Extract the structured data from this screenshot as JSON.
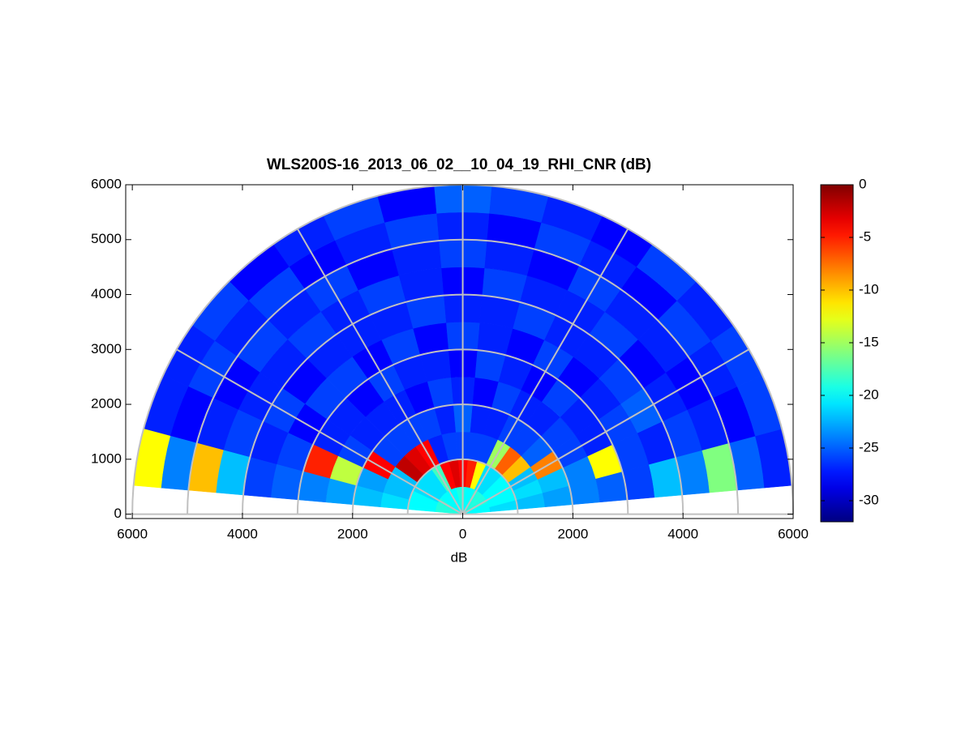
{
  "chart_data": {
    "type": "polar-heatmap",
    "title": "WLS200S-16_2013_06_02__10_04_19_RHI_CNR (dB)",
    "xlabel": "dB",
    "xlim": [
      -6120,
      6000
    ],
    "ylim": [
      -80,
      6000
    ],
    "xticks": [
      {
        "value": -6000,
        "label": "6000"
      },
      {
        "value": -4000,
        "label": "4000"
      },
      {
        "value": -2000,
        "label": "2000"
      },
      0,
      2000,
      4000,
      6000
    ],
    "yticks": [
      0,
      1000,
      2000,
      3000,
      4000,
      5000,
      6000
    ],
    "rgrid": [
      1000,
      2000,
      3000,
      4000,
      5000,
      6000
    ],
    "thetagrid": [
      0,
      30,
      60,
      90,
      120,
      150,
      180
    ],
    "theta_edges": [
      5,
      15,
      25,
      35,
      45,
      55,
      65,
      75,
      85,
      95,
      105,
      115,
      125,
      135,
      145,
      155,
      165,
      175
    ],
    "r_edges": [
      0,
      500,
      1000,
      1500,
      2000,
      2500,
      3000,
      3500,
      4000,
      4500,
      5000,
      5500,
      6000
    ],
    "values": [
      [
        -20,
        -21,
        -22,
        -23,
        -24,
        -25,
        -26,
        -22,
        -24,
        -16,
        -25,
        -27
      ],
      [
        -20,
        -20,
        -21,
        -22,
        -24,
        -12,
        -26,
        -27,
        -26,
        -27,
        -28,
        -26
      ],
      [
        -19,
        -20,
        -22,
        -8,
        -26,
        -27,
        -26,
        -25,
        -27,
        -28,
        -27,
        -26
      ],
      [
        -19,
        -20,
        -10,
        -25,
        -26,
        -27,
        -27,
        -26,
        -28,
        -27,
        -26,
        -27
      ],
      [
        -19,
        -21,
        -7,
        -26,
        -27,
        -26,
        -28,
        -27,
        -26,
        -27,
        -28,
        -26
      ],
      [
        -19,
        -21,
        -15,
        -26,
        -27,
        -28,
        -26,
        -27,
        -27,
        -26,
        -27,
        -28
      ],
      [
        -20,
        -12,
        -26,
        -27,
        -26,
        -27,
        -28,
        -26,
        -27,
        -28,
        -26,
        -27
      ],
      [
        -20,
        -5,
        -26,
        -27,
        -28,
        -26,
        -27,
        -27,
        -26,
        -27,
        -28,
        -26
      ],
      [
        -19,
        -4,
        -26,
        -25,
        -27,
        -28,
        -26,
        -27,
        -28,
        -26,
        -27,
        -25
      ],
      [
        -19,
        -3,
        -26,
        -27,
        -26,
        -27,
        -28,
        -26,
        -27,
        -27,
        -26,
        -28
      ],
      [
        -20,
        -4,
        -27,
        -26,
        -28,
        -27,
        -26,
        -27,
        -26,
        -28,
        -27,
        -26
      ],
      [
        -20,
        -18,
        -4,
        -26,
        -27,
        -26,
        -28,
        -27,
        -27,
        -26,
        -28,
        -27
      ],
      [
        -20,
        -21,
        -3,
        -26,
        -27,
        -28,
        -26,
        -27,
        -26,
        -27,
        -26,
        -28
      ],
      [
        -20,
        -21,
        -2,
        -26,
        -27,
        -27,
        -26,
        -28,
        -27,
        -26,
        -27,
        -26
      ],
      [
        -19,
        -21,
        -22,
        -4,
        -26,
        -27,
        -28,
        -26,
        -27,
        -28,
        -26,
        -27
      ],
      [
        -19,
        -20,
        -22,
        -23,
        -14,
        -5,
        -26,
        -27,
        -26,
        -27,
        -28,
        -27
      ],
      [
        -19,
        -20,
        -21,
        -22,
        -23,
        -24,
        -25,
        -26,
        -22,
        -10,
        -24,
        -12
      ]
    ],
    "clim": [
      -32,
      0
    ],
    "cticks": [
      0,
      -5,
      -10,
      -15,
      -20,
      -25,
      -30
    ],
    "colormap": "jet"
  }
}
